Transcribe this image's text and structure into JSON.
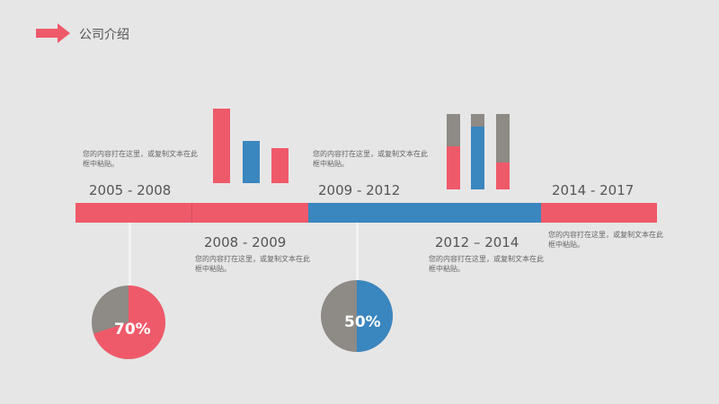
{
  "header": {
    "title": "公司介绍",
    "arrow_color": "#ef5a6a"
  },
  "colors": {
    "red": "#ef5a6a",
    "blue": "#3a86bf",
    "gray": "#8e8a85",
    "background": "#e6e6e6"
  },
  "periods": [
    {
      "label": "2005 - 2008",
      "desc": "您的内容打在这里，或复制文本在此框中粘贴。"
    },
    {
      "label": "2008 - 2009",
      "desc": "您的内容打在这里，或复制文本在此框中粘贴。"
    },
    {
      "label": "2009 - 2012",
      "desc": "您的内容打在这里，或复制文本在此框中粘贴。"
    },
    {
      "label": "2012 – 2014",
      "desc": "您的内容打在这里，或复制文本在此框中粘贴。"
    },
    {
      "label": "2014 - 2017",
      "desc": "您的内容打在这里，或复制文本在此框中粘贴。"
    }
  ],
  "pies": [
    {
      "label": "70%",
      "value": 70,
      "color": "#ef5a6a"
    },
    {
      "label": "50%",
      "value": 50,
      "color": "#3a86bf"
    }
  ]
}
